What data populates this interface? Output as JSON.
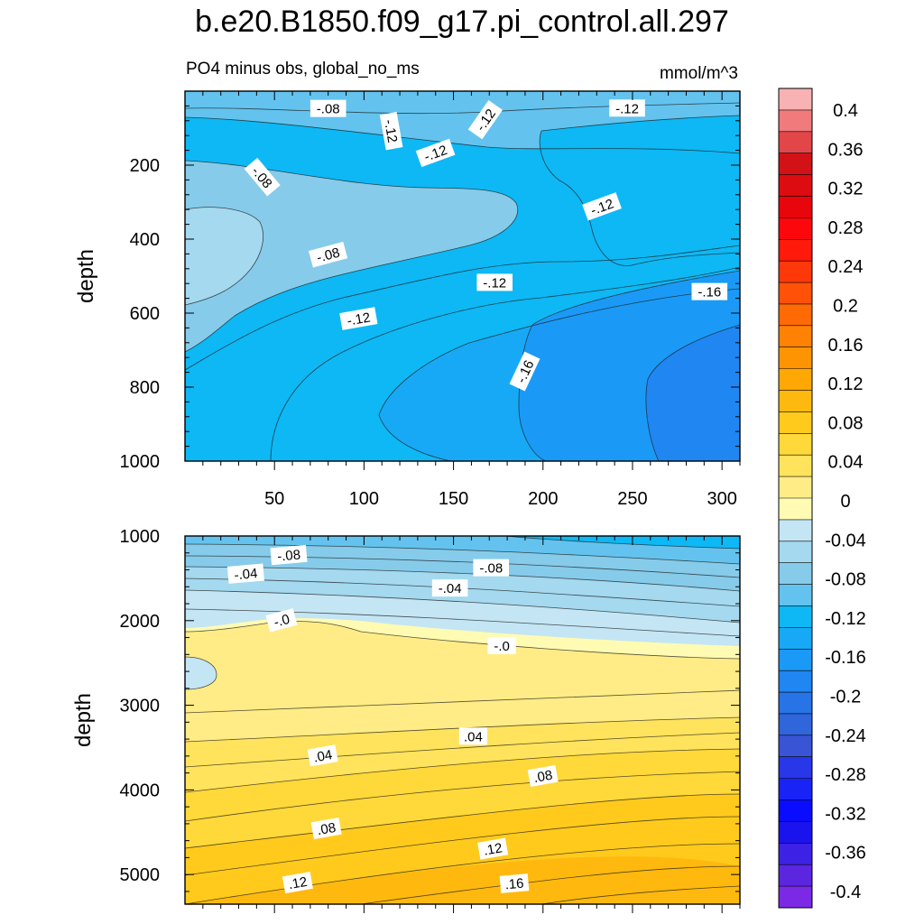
{
  "title": "b.e20.B1850.f09_g17.pi_control.all.297",
  "subtitle_left": "PO4 minus obs, global_no_ms",
  "subtitle_right": "mmol/m^3",
  "chart_data": [
    {
      "type": "heatmap",
      "panel": "upper",
      "xlabel": "",
      "ylabel": "depth",
      "xlim": [
        0,
        310
      ],
      "ylim": [
        1000,
        0
      ],
      "x_ticks": [
        50,
        100,
        150,
        200,
        250,
        300
      ],
      "y_ticks": [
        200,
        400,
        600,
        800,
        1000
      ],
      "contour_labels": [
        {
          "text": "-.08",
          "x": 80,
          "y": 48,
          "angle": 0
        },
        {
          "text": "-.12",
          "x": 115,
          "y": 108,
          "angle": 80
        },
        {
          "text": "-.12",
          "x": 168,
          "y": 78,
          "angle": -55
        },
        {
          "text": "-.12",
          "x": 140,
          "y": 168,
          "angle": -20
        },
        {
          "text": "-.12",
          "x": 247,
          "y": 47,
          "angle": 0
        },
        {
          "text": "-.08",
          "x": 43,
          "y": 233,
          "angle": 50
        },
        {
          "text": "-.12",
          "x": 233,
          "y": 313,
          "angle": -20
        },
        {
          "text": "-.08",
          "x": 80,
          "y": 443,
          "angle": -15
        },
        {
          "text": "-.12",
          "x": 173,
          "y": 518,
          "angle": 0
        },
        {
          "text": "-.12",
          "x": 97,
          "y": 616,
          "angle": -10
        },
        {
          "text": "-.16",
          "x": 293,
          "y": 543,
          "angle": 0
        },
        {
          "text": "-.16",
          "x": 190,
          "y": 758,
          "angle": -65
        }
      ]
    },
    {
      "type": "heatmap",
      "panel": "lower",
      "xlabel": "",
      "ylabel": "depth",
      "xlim": [
        0,
        310
      ],
      "ylim": [
        5350,
        1000
      ],
      "y_ticks": [
        1000,
        2000,
        3000,
        4000,
        5000
      ],
      "contour_labels": [
        {
          "text": "-.08",
          "x": 58,
          "y": 1230,
          "angle": -5
        },
        {
          "text": "-.04",
          "x": 34,
          "y": 1450,
          "angle": -5
        },
        {
          "text": "-.08",
          "x": 171,
          "y": 1380,
          "angle": 0
        },
        {
          "text": "-.04",
          "x": 148,
          "y": 1620,
          "angle": 0
        },
        {
          "text": "-.0",
          "x": 54,
          "y": 2000,
          "angle": -15
        },
        {
          "text": "-.0",
          "x": 177,
          "y": 2300,
          "angle": 0
        },
        {
          "text": ".04",
          "x": 77,
          "y": 3600,
          "angle": -10
        },
        {
          "text": ".04",
          "x": 161,
          "y": 3370,
          "angle": 0
        },
        {
          "text": ".08",
          "x": 200,
          "y": 3840,
          "angle": -10
        },
        {
          "text": ".08",
          "x": 79,
          "y": 4460,
          "angle": -10
        },
        {
          "text": ".12",
          "x": 172,
          "y": 4700,
          "angle": -10
        },
        {
          "text": ".12",
          "x": 63,
          "y": 5100,
          "angle": -10
        },
        {
          "text": ".16",
          "x": 184,
          "y": 5110,
          "angle": -5
        }
      ]
    }
  ],
  "colorbar": {
    "labels": [
      "0.4",
      "0.36",
      "0.32",
      "0.28",
      "0.24",
      "0.2",
      "0.16",
      "0.12",
      "0.08",
      "0.04",
      "0",
      "-0.04",
      "-0.08",
      "-0.12",
      "-0.16",
      "-0.2",
      "-0.24",
      "-0.28",
      "-0.32",
      "-0.36",
      "-0.4"
    ],
    "colors": [
      "#f8b2b4",
      "#f07a7c",
      "#e24649",
      "#d21216",
      "#dc0c10",
      "#e8050b",
      "#fb070c",
      "#ff1a0b",
      "#ff380a",
      "#ff5208",
      "#ff6a05",
      "#ff8204",
      "#ff9403",
      "#ffa705",
      "#ffb90e",
      "#ffca1c",
      "#ffd83a",
      "#ffe35c",
      "#ffec86",
      "#fffbb2",
      "#c4e5f4",
      "#a4d9ef",
      "#86cbea",
      "#63c3ee",
      "#0db8f4",
      "#17a9f6",
      "#1a9af6",
      "#1f86f2",
      "#2774e6",
      "#2f66dc",
      "#3a54d6",
      "#2837e8",
      "#1a23f5",
      "#0a0cff",
      "#1b13ee",
      "#3d22e6",
      "#5c26e0",
      "#7c29e6"
    ]
  }
}
